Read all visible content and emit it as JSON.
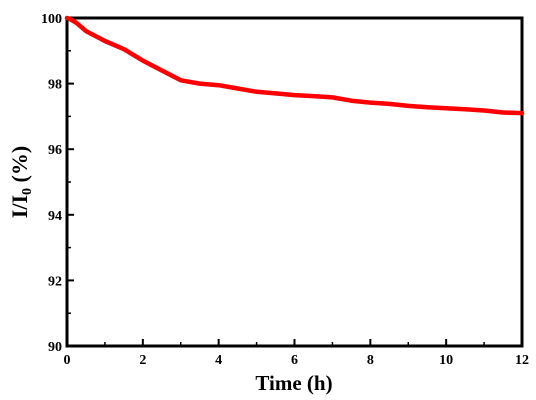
{
  "chart_data": {
    "type": "line",
    "title": "",
    "xlabel": "Time (h)",
    "ylabel": {
      "main": "I/I",
      "sub": "0",
      "unit": " (%)"
    },
    "xlim": [
      0,
      12
    ],
    "ylim": [
      90,
      100
    ],
    "xticks": [
      "0",
      "2",
      "4",
      "6",
      "8",
      "10",
      "12"
    ],
    "yticks": [
      "90",
      "92",
      "94",
      "96",
      "98",
      "100"
    ],
    "grid": false,
    "legend": "none",
    "series": [
      {
        "color": "#ff0000",
        "x": [
          0,
          0.1,
          0.25,
          0.5,
          1.0,
          1.5,
          2.0,
          2.5,
          3.0,
          3.5,
          4.0,
          4.5,
          5.0,
          5.5,
          6.0,
          6.5,
          7.0,
          7.5,
          8.0,
          8.5,
          9.0,
          9.5,
          10.0,
          10.5,
          11.0,
          11.5,
          12.0
        ],
        "y": [
          100.0,
          99.95,
          99.85,
          99.6,
          99.3,
          99.05,
          98.7,
          98.4,
          98.1,
          98.0,
          97.95,
          97.85,
          97.75,
          97.7,
          97.65,
          97.62,
          97.58,
          97.48,
          97.42,
          97.38,
          97.32,
          97.28,
          97.25,
          97.22,
          97.18,
          97.12,
          97.1
        ]
      }
    ]
  }
}
